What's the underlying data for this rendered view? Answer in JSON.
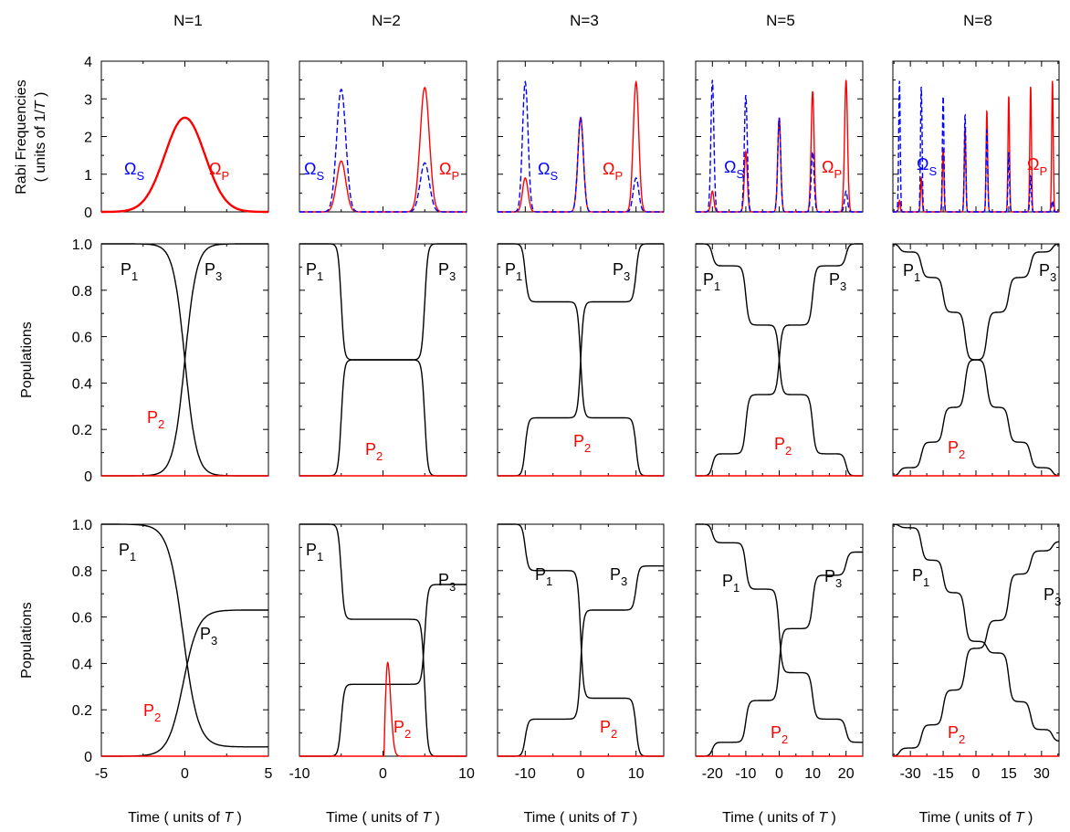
{
  "chart_data": {
    "type": "line",
    "column_titles": [
      "N=1",
      "N=2",
      "N=3",
      "N=5",
      "N=8"
    ],
    "xlabel": "Time ( units of T )",
    "xlabel_parts": [
      "Time ( units of ",
      "T",
      " )"
    ],
    "x_ticks": [
      {
        "values": [
          -5,
          0,
          5
        ],
        "labels": [
          "-5",
          "0",
          "5"
        ]
      },
      {
        "values": [
          -10,
          0,
          10
        ],
        "labels": [
          "-10",
          "0",
          "10"
        ]
      },
      {
        "values": [
          -10,
          0,
          10
        ],
        "labels": [
          "-10",
          "0",
          "10"
        ]
      },
      {
        "values": [
          -20,
          -10,
          0,
          10,
          20
        ],
        "labels": [
          "-20",
          "-10",
          "0",
          "10",
          "20"
        ]
      },
      {
        "values": [
          -30,
          -15,
          0,
          15,
          30
        ],
        "labels": [
          "-30",
          "-15",
          "0",
          "15",
          "30"
        ]
      }
    ],
    "xlims": [
      [
        -5,
        5
      ],
      [
        -10,
        10
      ],
      [
        -15,
        15
      ],
      [
        -25,
        25
      ],
      [
        -38,
        38
      ]
    ],
    "rows": [
      {
        "ylabel": "Rabi Frequencies ( units of 1/T )",
        "ylabel_lines": [
          [
            "Rabi Frequencies"
          ],
          [
            "( units of 1/",
            "T",
            " )"
          ]
        ],
        "ylim": [
          0,
          4
        ],
        "y_ticks": {
          "values": [
            0,
            1,
            2,
            3,
            4
          ],
          "labels": [
            "0",
            "1",
            "2",
            "3",
            "4"
          ]
        }
      },
      {
        "ylabel": "Populations",
        "ylim": [
          0,
          1
        ],
        "y_ticks": {
          "values": [
            0,
            0.2,
            0.4,
            0.6,
            0.8,
            1.0
          ],
          "labels": [
            "0",
            "0.2",
            "0.4",
            "0.6",
            "0.8",
            "1.0"
          ]
        }
      },
      {
        "ylabel": "Populations",
        "ylim": [
          0,
          1
        ],
        "y_ticks": {
          "values": [
            0,
            0.2,
            0.4,
            0.6,
            0.8,
            1.0
          ],
          "labels": [
            "0",
            "0.2",
            "0.4",
            "0.6",
            "0.8",
            "1.0"
          ]
        }
      }
    ],
    "series_labels": {
      "omega_s": {
        "base": "Ω",
        "sub": "S"
      },
      "omega_p": {
        "base": "Ω",
        "sub": "P"
      },
      "p1": {
        "base": "P",
        "sub": "1"
      },
      "p2": {
        "base": "P",
        "sub": "2"
      },
      "p3": {
        "base": "P",
        "sub": "3"
      }
    },
    "series_style": {
      "omega_s": {
        "color": "#0000ff",
        "dash": "dashed"
      },
      "omega_p": {
        "color": "#ff0000",
        "dash": "solid"
      },
      "p1": {
        "color": "#000000"
      },
      "p2": {
        "color": "#ff0000"
      },
      "p3": {
        "color": "#000000"
      }
    },
    "panels": [
      {
        "N": 1,
        "pulses": [
          {
            "t": 0,
            "omega_p": 2.5,
            "omega_s": 2.5,
            "width": 1.2
          }
        ],
        "row2": {
          "p1_steps": [
            [
              0,
              -0.18
            ]
          ],
          "p3_steps": [
            [
              0,
              0.18
            ]
          ],
          "p2_peaks": [
            [
              0,
              0.5,
              0.62
            ]
          ]
        },
        "row3": {
          "p1_steps": [
            [
              -0.96,
              -0.3
            ],
            [
              0.94,
              0.35
            ]
          ],
          "p3_steps": [
            [
              0.63,
              0.45
            ]
          ],
          "p2_peaks": [
            [
              0,
              0.31,
              0.65
            ]
          ]
        }
      },
      {
        "N": 2,
        "pulses": [
          {
            "t": -5,
            "omega_p": 1.35,
            "omega_s": 3.25,
            "width": 0.55
          },
          {
            "t": 5,
            "omega_p": 3.3,
            "omega_s": 1.3,
            "width": 0.55
          }
        ],
        "row2": {
          "p1_steps": [
            [
              -0.5,
              -5
            ],
            [
              -0.5,
              5
            ]
          ],
          "p3_steps": [
            [
              0.5,
              -5
            ],
            [
              0.5,
              5
            ]
          ],
          "p2_peaks": [
            [
              -5,
              0.14,
              0.45
            ],
            [
              5,
              0.14,
              0.45
            ]
          ]
        },
        "row3": {
          "p1_steps": [
            [
              -0.41,
              -5
            ],
            [
              -0.59,
              5
            ]
          ],
          "p3_steps": [
            [
              0.31,
              -5
            ],
            [
              0.43,
              5
            ]
          ],
          "p2_peaks": [
            [
              -5,
              0.09,
              0.45
            ],
            [
              5,
              0.15,
              0.45
            ]
          ]
        }
      },
      {
        "N": 3,
        "pulses": [
          {
            "t": -10,
            "omega_p": 0.9,
            "omega_s": 3.45,
            "width": 0.5
          },
          {
            "t": 0,
            "omega_p": 2.5,
            "omega_s": 2.5,
            "width": 0.5
          },
          {
            "t": 10,
            "omega_p": 3.45,
            "omega_s": 0.9,
            "width": 0.5
          }
        ],
        "row2": {
          "p1_steps": [
            [
              -0.25,
              -10
            ],
            [
              -0.5,
              0
            ],
            [
              -0.25,
              10
            ]
          ],
          "p3_steps": [
            [
              0.25,
              -10
            ],
            [
              0.5,
              0
            ],
            [
              0.25,
              10
            ]
          ],
          "p2_peaks": [
            [
              -10,
              0.06,
              0.4
            ],
            [
              0,
              0.06,
              0.4
            ],
            [
              10,
              0.06,
              0.4
            ]
          ]
        },
        "row3": {
          "p1_steps": [
            [
              -0.2,
              -10
            ],
            [
              -0.55,
              0
            ],
            [
              -0.25,
              10
            ]
          ],
          "p3_steps": [
            [
              0.16,
              -10
            ],
            [
              0.47,
              0
            ],
            [
              0.19,
              10
            ]
          ],
          "p2_peaks": [
            [
              -10,
              0.04,
              0.4
            ],
            [
              0,
              0.07,
              0.4
            ],
            [
              10,
              0.04,
              0.4
            ]
          ]
        }
      },
      {
        "N": 5,
        "pulses": [
          {
            "t": -20,
            "omega_p": 0.55,
            "omega_s": 3.5,
            "width": 0.45
          },
          {
            "t": -10,
            "omega_p": 1.6,
            "omega_s": 3.1,
            "width": 0.45
          },
          {
            "t": 0,
            "omega_p": 2.5,
            "omega_s": 2.5,
            "width": 0.45
          },
          {
            "t": 10,
            "omega_p": 3.2,
            "omega_s": 1.6,
            "width": 0.45
          },
          {
            "t": 20,
            "omega_p": 3.5,
            "omega_s": 0.55,
            "width": 0.45
          }
        ],
        "row2": {
          "p1_steps": [
            [
              -0.095,
              -20
            ],
            [
              -0.255,
              -10
            ],
            [
              -0.3,
              0
            ],
            [
              -0.255,
              10
            ],
            [
              -0.095,
              20
            ]
          ],
          "p3_steps": [
            [
              0.095,
              -20
            ],
            [
              0.255,
              -10
            ],
            [
              0.3,
              0
            ],
            [
              0.255,
              10
            ],
            [
              0.095,
              20
            ]
          ],
          "p2_peaks": [
            [
              -20,
              0.015,
              0.35
            ],
            [
              -10,
              0.015,
              0.35
            ],
            [
              0,
              0.015,
              0.35
            ],
            [
              10,
              0.015,
              0.35
            ],
            [
              20,
              0.015,
              0.35
            ]
          ]
        },
        "row3": {
          "p1_steps": [
            [
              -0.08,
              -20
            ],
            [
              -0.2,
              -10
            ],
            [
              -0.36,
              0
            ],
            [
              -0.2,
              10
            ],
            [
              -0.1,
              20
            ]
          ],
          "p3_steps": [
            [
              0.06,
              -20
            ],
            [
              0.18,
              -10
            ],
            [
              0.31,
              0
            ],
            [
              0.23,
              10
            ],
            [
              0.1,
              20
            ]
          ],
          "p2_peaks": [
            [
              -20,
              0.02,
              0.35
            ],
            [
              -10,
              0.02,
              0.35
            ],
            [
              0,
              0.02,
              0.35
            ],
            [
              10,
              0.02,
              0.35
            ],
            [
              20,
              0.02,
              0.35
            ]
          ]
        }
      },
      {
        "N": 8,
        "pulses": [
          {
            "t": -35,
            "omega_p": 0.3,
            "omega_s": 3.5,
            "width": 0.35
          },
          {
            "t": -25,
            "omega_p": 0.9,
            "omega_s": 3.35,
            "width": 0.35
          },
          {
            "t": -15,
            "omega_p": 1.7,
            "omega_s": 3.1,
            "width": 0.35
          },
          {
            "t": -5,
            "omega_p": 2.25,
            "omega_s": 2.6,
            "width": 0.35
          },
          {
            "t": 5,
            "omega_p": 2.7,
            "omega_s": 2.2,
            "width": 0.35
          },
          {
            "t": 15,
            "omega_p": 3.1,
            "omega_s": 1.6,
            "width": 0.35
          },
          {
            "t": 25,
            "omega_p": 3.35,
            "omega_s": 0.95,
            "width": 0.35
          },
          {
            "t": 35,
            "omega_p": 3.5,
            "omega_s": 0.3,
            "width": 0.35
          }
        ],
        "row2": {
          "p1_steps": [
            [
              -0.035,
              -35
            ],
            [
              -0.11,
              -25
            ],
            [
              -0.15,
              -15
            ],
            [
              -0.205,
              -5
            ],
            [
              -0.205,
              5
            ],
            [
              -0.15,
              15
            ],
            [
              -0.11,
              25
            ],
            [
              -0.035,
              35
            ]
          ],
          "p3_steps": [
            [
              0.035,
              -35
            ],
            [
              0.11,
              -25
            ],
            [
              0.15,
              -15
            ],
            [
              0.205,
              -5
            ],
            [
              0.205,
              5
            ],
            [
              0.15,
              15
            ],
            [
              0.11,
              25
            ],
            [
              0.035,
              35
            ]
          ],
          "p2_peaks": [
            [
              -35,
              0.01,
              0.3
            ],
            [
              -25,
              0.01,
              0.3
            ],
            [
              -15,
              0.01,
              0.3
            ],
            [
              -5,
              0.01,
              0.3
            ],
            [
              5,
              0.01,
              0.3
            ],
            [
              15,
              0.01,
              0.3
            ],
            [
              25,
              0.01,
              0.3
            ],
            [
              35,
              0.01,
              0.3
            ]
          ]
        },
        "row3": {
          "p1_steps": [
            [
              -0.015,
              -35
            ],
            [
              -0.14,
              -25
            ],
            [
              -0.14,
              -15
            ],
            [
              -0.21,
              -5
            ],
            [
              -0.05,
              5
            ],
            [
              -0.21,
              15
            ],
            [
              -0.12,
              25
            ],
            [
              -0.05,
              35
            ]
          ],
          "p3_steps": [
            [
              0.035,
              -35
            ],
            [
              0.1,
              -25
            ],
            [
              0.15,
              -15
            ],
            [
              0.18,
              -5
            ],
            [
              0.12,
              5
            ],
            [
              0.2,
              15
            ],
            [
              0.1,
              25
            ],
            [
              0.04,
              35
            ]
          ],
          "p2_peaks": [
            [
              -35,
              0.01,
              0.3
            ],
            [
              -25,
              0.01,
              0.3
            ],
            [
              -15,
              0.01,
              0.3
            ],
            [
              -5,
              0.01,
              0.3
            ],
            [
              5,
              0.01,
              0.3
            ],
            [
              15,
              0.01,
              0.3
            ],
            [
              25,
              0.01,
              0.3
            ],
            [
              35,
              0.01,
              0.3
            ]
          ]
        }
      }
    ]
  }
}
